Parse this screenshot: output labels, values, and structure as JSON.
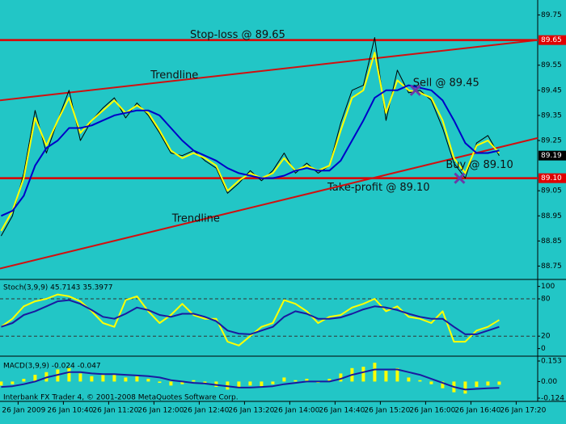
{
  "chart_data": [
    {
      "type": "line",
      "x": [
        -15,
        -5,
        5,
        15,
        25,
        35,
        45,
        55,
        65,
        75,
        85,
        95,
        105,
        115,
        125,
        135,
        145,
        155,
        165,
        175,
        185,
        195,
        205,
        215,
        225,
        235,
        245,
        255,
        265,
        275,
        285,
        295,
        305,
        315,
        325,
        335,
        345,
        355,
        365,
        375,
        385,
        395,
        405,
        415,
        425
      ],
      "xlim": [
        -16,
        459
      ],
      "ylim": [
        88.7,
        89.8
      ],
      "yticks": [
        88.75,
        88.85,
        88.95,
        89.05,
        89.25,
        89.35,
        89.45,
        89.55,
        89.75
      ],
      "series": [
        {
          "type": "line",
          "color": "#000000",
          "width": 1,
          "values": [
            88.87,
            88.95,
            89.12,
            89.37,
            89.2,
            89.33,
            89.45,
            89.25,
            89.33,
            89.38,
            89.42,
            89.34,
            89.4,
            89.35,
            89.28,
            89.2,
            89.19,
            89.21,
            89.17,
            89.14,
            89.04,
            89.08,
            89.13,
            89.09,
            89.13,
            89.2,
            89.12,
            89.16,
            89.12,
            89.15,
            89.32,
            89.45,
            89.47,
            89.66,
            89.33,
            89.53,
            89.44,
            89.45,
            89.41,
            89.3,
            89.16,
            89.1,
            89.24,
            89.27,
            89.19
          ]
        },
        {
          "type": "line",
          "color": "#ffff00",
          "width": 2,
          "values": [
            88.89,
            88.97,
            89.1,
            89.34,
            89.23,
            89.33,
            89.42,
            89.28,
            89.33,
            89.37,
            89.41,
            89.36,
            89.39,
            89.36,
            89.29,
            89.21,
            89.18,
            89.2,
            89.18,
            89.15,
            89.05,
            89.09,
            89.12,
            89.1,
            89.12,
            89.18,
            89.13,
            89.15,
            89.13,
            89.15,
            89.29,
            89.42,
            89.45,
            89.6,
            89.36,
            89.49,
            89.45,
            89.44,
            89.42,
            89.33,
            89.18,
            89.12,
            89.23,
            89.25,
            89.2
          ]
        },
        {
          "type": "line",
          "color": "#0000c8",
          "width": 2,
          "values": [
            88.95,
            88.97,
            89.03,
            89.15,
            89.22,
            89.25,
            89.3,
            89.3,
            89.31,
            89.33,
            89.35,
            89.36,
            89.37,
            89.37,
            89.35,
            89.3,
            89.25,
            89.21,
            89.19,
            89.17,
            89.14,
            89.12,
            89.11,
            89.1,
            89.1,
            89.11,
            89.13,
            89.14,
            89.13,
            89.13,
            89.17,
            89.25,
            89.33,
            89.42,
            89.45,
            89.45,
            89.47,
            89.46,
            89.45,
            89.41,
            89.33,
            89.24,
            89.2,
            89.2,
            89.21
          ]
        }
      ],
      "hlines": [
        {
          "value": 89.65,
          "label": "89.65",
          "note": "Stop-loss @ 89.65",
          "color": "#e00000"
        },
        {
          "value": 89.1,
          "label": "89.10",
          "note": "Take-profit @ 89.10",
          "color": "#e00000"
        }
      ],
      "price_marker": {
        "value": 89.19,
        "label": "89.19"
      },
      "trendlines": [
        {
          "x": [
            -16,
            459
          ],
          "y": [
            89.41,
            89.65
          ],
          "label": "Trendline",
          "color": "#d01010"
        },
        {
          "x": [
            -16,
            459
          ],
          "y": [
            88.74,
            89.26
          ],
          "label": "Trendline",
          "color": "#d01010"
        }
      ],
      "trades": [
        {
          "x": 351,
          "y": 89.45,
          "label": "Sell @ 89.45",
          "color": "#6a3aa8"
        },
        {
          "x": 390,
          "y": 89.1,
          "label": "Buy @ 89.10",
          "color": "#6a3aa8"
        }
      ]
    },
    {
      "type": "line",
      "title": "Stoch(3,9,9) 45.7143 35.3977",
      "ylim": [
        -7,
        106
      ],
      "yticks": [
        0,
        20,
        80,
        100
      ],
      "levels": [
        20,
        80
      ],
      "series": [
        {
          "type": "line",
          "color": "#ffff00",
          "width": 2,
          "values": [
            35,
            48,
            68,
            76,
            80,
            87,
            84,
            76,
            60,
            41,
            35,
            78,
            84,
            60,
            41,
            54,
            72,
            54,
            48,
            48,
            11,
            5,
            20,
            35,
            41,
            78,
            72,
            60,
            41,
            51,
            54,
            66,
            72,
            80,
            60,
            68,
            51,
            48,
            41,
            60,
            11,
            11,
            29,
            35,
            46
          ]
        },
        {
          "type": "line",
          "color": "#1a1aa0",
          "width": 2,
          "values": [
            35,
            41,
            54,
            60,
            68,
            76,
            78,
            72,
            62,
            51,
            48,
            56,
            66,
            62,
            54,
            51,
            56,
            56,
            51,
            44,
            29,
            24,
            23,
            29,
            35,
            51,
            60,
            56,
            48,
            48,
            50,
            56,
            63,
            68,
            66,
            62,
            56,
            51,
            48,
            48,
            35,
            23,
            23,
            29,
            35
          ]
        }
      ]
    },
    {
      "type": "bar",
      "title": "MACD(3,9,9) -0.024 -0.047",
      "footer": "Interbank FX Trader 4, © 2001-2008 MetaQuotes Software Corp.",
      "ylim": [
        -0.124,
        0.153
      ],
      "yticks": [
        -0.124,
        {
          "value": 0,
          "label": "0.00"
        },
        0.153
      ],
      "xticks": [
        {
          "value": 0,
          "label": "26 Jan 2009"
        },
        {
          "value": 40,
          "label": "26 Jan 10:40"
        },
        {
          "value": 80,
          "label": "26 Jan 11:20"
        },
        {
          "value": 120,
          "label": "26 Jan 12:00"
        },
        {
          "value": 160,
          "label": "26 Jan 12:40"
        },
        {
          "value": 200,
          "label": "26 Jan 13:20"
        },
        {
          "value": 240,
          "label": "26 Jan 14:00"
        },
        {
          "value": 280,
          "label": "26 Jan 14:40"
        },
        {
          "value": 320,
          "label": "26 Jan 15:20"
        },
        {
          "value": 360,
          "label": "26 Jan 16:00"
        },
        {
          "value": 400,
          "label": "26 Jan 16:40"
        },
        {
          "value": 440,
          "label": "26 Jan 17:20"
        }
      ],
      "series": [
        {
          "type": "bar",
          "color": "#ffff00",
          "values": [
            -0.03,
            -0.02,
            0.02,
            0.05,
            0.07,
            0.09,
            0.1,
            0.06,
            0.04,
            0.05,
            0.06,
            0.03,
            0.04,
            0.02,
            -0.01,
            -0.03,
            -0.02,
            0.01,
            -0.02,
            -0.04,
            -0.06,
            -0.05,
            -0.03,
            -0.04,
            -0.02,
            0.03,
            0.01,
            0.02,
            -0.01,
            0.02,
            0.06,
            0.1,
            0.11,
            0.14,
            0.08,
            0.1,
            0.03,
            0.01,
            -0.02,
            -0.05,
            -0.08,
            -0.09,
            -0.04,
            -0.03,
            -0.024
          ]
        },
        {
          "type": "line",
          "color": "#1a1aa0",
          "width": 2,
          "values": [
            -0.04,
            -0.035,
            -0.02,
            0,
            0.03,
            0.05,
            0.07,
            0.07,
            0.06,
            0.055,
            0.055,
            0.05,
            0.045,
            0.04,
            0.03,
            0.01,
            0,
            -0.01,
            -0.015,
            -0.025,
            -0.035,
            -0.045,
            -0.045,
            -0.04,
            -0.035,
            -0.02,
            -0.01,
            0,
            0,
            0,
            0.02,
            0.05,
            0.07,
            0.09,
            0.09,
            0.09,
            0.07,
            0.05,
            0.02,
            -0.01,
            -0.04,
            -0.06,
            -0.055,
            -0.05,
            -0.047
          ]
        }
      ]
    }
  ]
}
